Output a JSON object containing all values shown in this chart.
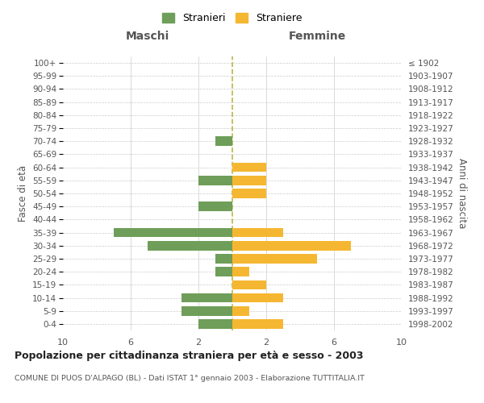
{
  "age_groups": [
    "0-4",
    "5-9",
    "10-14",
    "15-19",
    "20-24",
    "25-29",
    "30-34",
    "35-39",
    "40-44",
    "45-49",
    "50-54",
    "55-59",
    "60-64",
    "65-69",
    "70-74",
    "75-79",
    "80-84",
    "85-89",
    "90-94",
    "95-99",
    "100+"
  ],
  "birth_years": [
    "1998-2002",
    "1993-1997",
    "1988-1992",
    "1983-1987",
    "1978-1982",
    "1973-1977",
    "1968-1972",
    "1963-1967",
    "1958-1962",
    "1953-1957",
    "1948-1952",
    "1943-1947",
    "1938-1942",
    "1933-1937",
    "1928-1932",
    "1923-1927",
    "1918-1922",
    "1913-1917",
    "1908-1912",
    "1903-1907",
    "≤ 1902"
  ],
  "males": [
    2,
    3,
    3,
    0,
    1,
    1,
    5,
    7,
    0,
    2,
    0,
    2,
    0,
    0,
    1,
    0,
    0,
    0,
    0,
    0,
    0
  ],
  "females": [
    3,
    1,
    3,
    2,
    1,
    5,
    7,
    3,
    0,
    0,
    2,
    2,
    2,
    0,
    0,
    0,
    0,
    0,
    0,
    0,
    0
  ],
  "male_color": "#6e9e59",
  "female_color": "#f5b731",
  "grid_color": "#cccccc",
  "center_line_color": "#b8b84a",
  "title": "Popolazione per cittadinanza straniera per età e sesso - 2003",
  "subtitle": "COMUNE DI PUOS D'ALPAGO (BL) - Dati ISTAT 1° gennaio 2003 - Elaborazione TUTTITALIA.IT",
  "xlabel_left": "Maschi",
  "xlabel_right": "Femmine",
  "ylabel_left": "Fasce di età",
  "ylabel_right": "Anni di nascita",
  "legend_male": "Stranieri",
  "legend_female": "Straniere",
  "xlim": 10,
  "background_color": "#ffffff"
}
